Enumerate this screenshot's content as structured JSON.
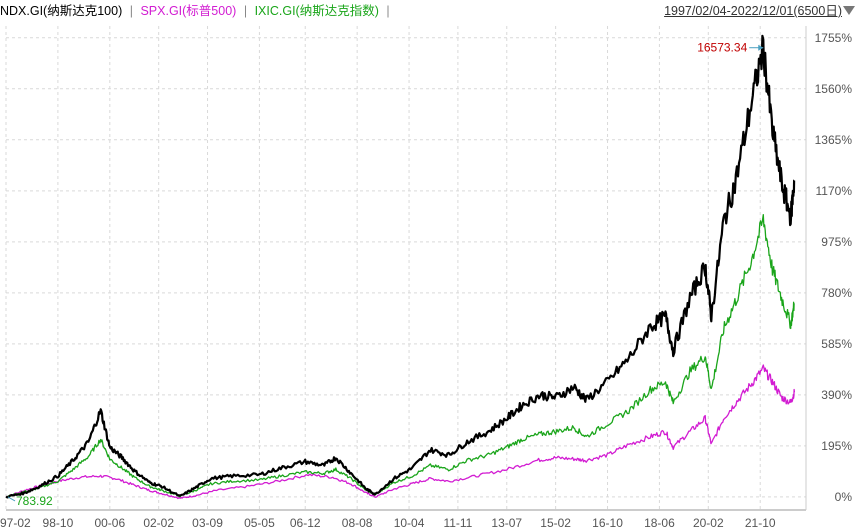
{
  "header": {
    "legend": [
      {
        "label": "NDX.GI(纳斯达克100)",
        "color": "#000000"
      },
      {
        "label": "SPX.GI(标普500)",
        "color": "#d21cd2"
      },
      {
        "label": "IXIC.GI(纳斯达克指数)",
        "color": "#1aa51a"
      }
    ],
    "separator": "|",
    "range_label": "1997/02/04-2022/12/01(6500日)"
  },
  "chart_data": {
    "type": "line",
    "title": "",
    "xlabel": "",
    "ylabel": "",
    "y_unit": "%",
    "ylim": [
      -50,
      1800
    ],
    "y_ticks": [
      0,
      195,
      390,
      585,
      780,
      975,
      1170,
      1365,
      1560,
      1755
    ],
    "y_tick_labels": [
      "0%",
      "195%",
      "390%",
      "585%",
      "780%",
      "975%",
      "1170%",
      "1365%",
      "1560%",
      "1755%"
    ],
    "xlim": [
      1997.1,
      2023.3
    ],
    "x_ticks": [
      1997.1,
      1998.8,
      2000.5,
      2002.1,
      2003.7,
      2005.4,
      2006.9,
      2008.6,
      2010.3,
      2011.9,
      2013.5,
      2015.1,
      2016.8,
      2018.5,
      2020.1,
      2021.8
    ],
    "x_tick_labels": [
      "97-02",
      "98-10",
      "00-06",
      "02-02",
      "03-09",
      "05-05",
      "06-12",
      "08-08",
      "10-04",
      "11-11",
      "13-07",
      "15-02",
      "16-10",
      "18-06",
      "20-02",
      "21-10"
    ],
    "grid": true,
    "legend_position": "top-left",
    "annotations": [
      {
        "text": "16573.34",
        "x": 2021.9,
        "y": 1717,
        "color": "#c00000",
        "series": "NDX.GI(纳斯达克100)",
        "type": "max"
      },
      {
        "text": "783.92",
        "x": 1997.1,
        "y": 0,
        "color": "#1aa51a",
        "series": "SPX.GI(标普500)",
        "type": "min"
      }
    ],
    "series": [
      {
        "name": "NDX.GI(纳斯达克100)",
        "color": "#000000",
        "x": [
          1997.1,
          1997.7,
          1998.2,
          1998.8,
          1999.3,
          1999.8,
          2000.2,
          2000.5,
          2000.9,
          2001.3,
          2001.8,
          2002.2,
          2002.8,
          2003.3,
          2003.8,
          2004.5,
          2005.4,
          2006.1,
          2006.9,
          2007.5,
          2007.9,
          2008.4,
          2008.9,
          2009.2,
          2009.8,
          2010.4,
          2011.0,
          2011.6,
          2012.2,
          2012.9,
          2013.5,
          2014.0,
          2014.6,
          2015.1,
          2015.7,
          2016.1,
          2016.8,
          2017.5,
          2018.2,
          2018.7,
          2018.95,
          2019.5,
          2020.0,
          2020.2,
          2020.6,
          2021.0,
          2021.5,
          2021.9,
          2022.2,
          2022.5,
          2022.8,
          2022.92
        ],
        "values": [
          0,
          15,
          40,
          80,
          140,
          210,
          330,
          190,
          150,
          100,
          55,
          40,
          2,
          35,
          70,
          80,
          85,
          110,
          135,
          120,
          150,
          90,
          30,
          10,
          70,
          110,
          180,
          160,
          210,
          250,
          300,
          350,
          390,
          380,
          420,
          370,
          440,
          530,
          650,
          690,
          560,
          760,
          880,
          690,
          1050,
          1210,
          1500,
          1717,
          1400,
          1200,
          1070,
          1210
        ]
      },
      {
        "name": "SPX.GI(标普500)",
        "color": "#d21cd2",
        "x": [
          1997.1,
          1997.7,
          1998.3,
          1998.8,
          1999.5,
          2000.2,
          2000.7,
          2001.3,
          2001.8,
          2002.3,
          2002.8,
          2003.3,
          2004.0,
          2005.0,
          2006.0,
          2007.0,
          2007.8,
          2008.4,
          2008.9,
          2009.2,
          2009.8,
          2010.4,
          2011.0,
          2011.6,
          2012.5,
          2013.5,
          2014.5,
          2015.1,
          2015.7,
          2016.1,
          2016.8,
          2017.5,
          2018.2,
          2018.7,
          2018.95,
          2019.5,
          2020.0,
          2020.2,
          2020.6,
          2021.0,
          2021.5,
          2021.9,
          2022.2,
          2022.5,
          2022.8,
          2022.92
        ],
        "values": [
          0,
          25,
          45,
          60,
          75,
          80,
          70,
          45,
          25,
          10,
          -5,
          5,
          25,
          40,
          60,
          85,
          75,
          50,
          15,
          0,
          30,
          50,
          70,
          60,
          80,
          105,
          140,
          150,
          145,
          140,
          160,
          200,
          230,
          250,
          190,
          250,
          300,
          200,
          300,
          360,
          430,
          490,
          440,
          380,
          360,
          400
        ]
      },
      {
        "name": "IXIC.GI(纳斯达克指数)",
        "color": "#1aa51a",
        "x": [
          1997.1,
          1997.7,
          1998.2,
          1998.8,
          1999.3,
          1999.8,
          2000.2,
          2000.5,
          2000.9,
          2001.3,
          2001.8,
          2002.2,
          2002.8,
          2003.3,
          2003.8,
          2004.5,
          2005.4,
          2006.1,
          2006.9,
          2007.5,
          2007.9,
          2008.4,
          2008.9,
          2009.2,
          2009.8,
          2010.4,
          2011.0,
          2011.6,
          2012.2,
          2012.9,
          2013.5,
          2014.0,
          2014.6,
          2015.1,
          2015.7,
          2016.1,
          2016.8,
          2017.5,
          2018.2,
          2018.7,
          2018.95,
          2019.5,
          2020.0,
          2020.2,
          2020.6,
          2021.0,
          2021.5,
          2021.9,
          2022.2,
          2022.5,
          2022.8,
          2022.92
        ],
        "values": [
          0,
          20,
          35,
          60,
          105,
          155,
          220,
          145,
          110,
          75,
          40,
          25,
          3,
          25,
          50,
          60,
          65,
          80,
          95,
          90,
          105,
          70,
          25,
          10,
          55,
          80,
          120,
          105,
          140,
          160,
          190,
          220,
          240,
          250,
          265,
          230,
          280,
          330,
          410,
          440,
          360,
          480,
          540,
          410,
          640,
          750,
          900,
          1060,
          870,
          760,
          660,
          740
        ]
      }
    ]
  }
}
